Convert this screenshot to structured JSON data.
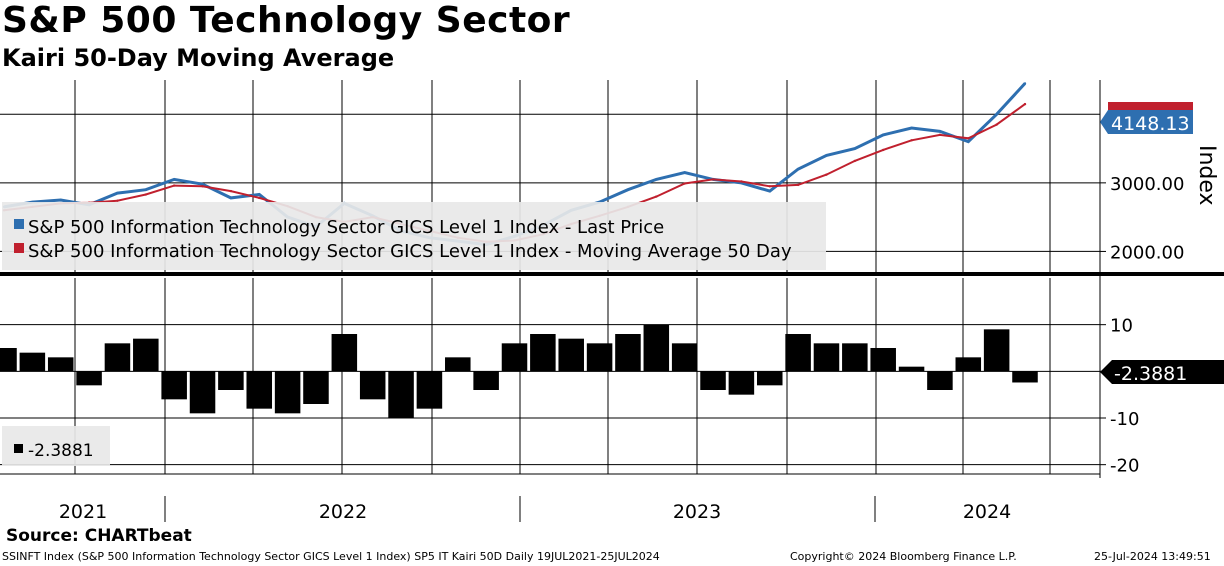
{
  "title": "S&P 500 Technology Sector",
  "subtitle": "Kairi 50-Day Moving Average",
  "source": "Source: CHARTbeat",
  "footer": {
    "left": "SSINFT Index (S&P 500 Information Technology Sector GICS Level 1 Index) SP5 IT Kairi 50D  Daily 19JUL2021-25JUL2024",
    "center": "Copyright© 2024 Bloomberg Finance L.P.",
    "right": "25-Jul-2024 13:49:51"
  },
  "colors": {
    "price": "#2e6fb0",
    "ma": "#c0202e",
    "kairi": "#000000",
    "grid": "#000000"
  },
  "chart_data": [
    {
      "type": "line",
      "ylabel": "Index",
      "ylim": [
        1700,
        4500
      ],
      "y_ticks": [
        "3000.00",
        "2000.00"
      ],
      "y_tick_values": [
        3000,
        2000
      ],
      "last_value_label": "4148.13",
      "legend_placement": "bottom-left",
      "x_ticks": [
        "2021",
        "2022",
        "2023",
        "2024"
      ],
      "x": [
        "2021-07",
        "2021-08",
        "2021-09",
        "2021-10",
        "2021-11",
        "2021-12",
        "2022-01",
        "2022-02",
        "2022-03",
        "2022-04",
        "2022-05",
        "2022-06",
        "2022-07",
        "2022-08",
        "2022-09",
        "2022-10",
        "2022-11",
        "2022-12",
        "2023-01",
        "2023-02",
        "2023-03",
        "2023-04",
        "2023-05",
        "2023-06",
        "2023-07",
        "2023-08",
        "2023-09",
        "2023-10",
        "2023-11",
        "2023-12",
        "2024-01",
        "2024-02",
        "2024-03",
        "2024-04",
        "2024-05",
        "2024-06",
        "2024-07"
      ],
      "series": [
        {
          "name": "S&P 500 Information Technology Sector GICS Level 1 Index - Last Price",
          "values": [
            2650,
            2720,
            2750,
            2680,
            2850,
            2900,
            3050,
            2980,
            2780,
            2830,
            2500,
            2360,
            2700,
            2520,
            2300,
            2200,
            2150,
            2100,
            2220,
            2380,
            2600,
            2720,
            2900,
            3050,
            3150,
            3050,
            3000,
            2880,
            3200,
            3400,
            3500,
            3700,
            3800,
            3750,
            3600,
            4000,
            4450
          ]
        },
        {
          "name": "S&P 500 Information Technology Sector GICS Level 1 Index - Moving Average 50 Day",
          "values": [
            2600,
            2650,
            2700,
            2710,
            2740,
            2830,
            2960,
            2950,
            2880,
            2780,
            2660,
            2500,
            2430,
            2500,
            2400,
            2300,
            2200,
            2140,
            2160,
            2250,
            2400,
            2520,
            2650,
            2800,
            2990,
            3050,
            3020,
            2950,
            2970,
            3120,
            3320,
            3480,
            3620,
            3700,
            3650,
            3850,
            4148.13
          ]
        }
      ]
    },
    {
      "type": "bar",
      "ylim": [
        -22,
        20
      ],
      "y_ticks": [
        "10",
        "0",
        "-10",
        "-20"
      ],
      "y_tick_values": [
        10,
        0,
        -10,
        -20
      ],
      "last_value_label": "-2.3881",
      "legend": "-2.3881",
      "x": [
        "2021-07",
        "2021-08",
        "2021-09",
        "2021-10",
        "2021-11",
        "2021-12",
        "2022-01",
        "2022-02",
        "2022-03",
        "2022-04",
        "2022-05",
        "2022-06",
        "2022-07",
        "2022-08",
        "2022-09",
        "2022-10",
        "2022-11",
        "2022-12",
        "2023-01",
        "2023-02",
        "2023-03",
        "2023-04",
        "2023-05",
        "2023-06",
        "2023-07",
        "2023-08",
        "2023-09",
        "2023-10",
        "2023-11",
        "2023-12",
        "2024-01",
        "2024-02",
        "2024-03",
        "2024-04",
        "2024-05",
        "2024-06",
        "2024-07"
      ],
      "values": [
        5,
        4,
        3,
        -3,
        6,
        7,
        -6,
        -9,
        -4,
        -8,
        -9,
        -7,
        8,
        -6,
        -10,
        -8,
        3,
        -4,
        6,
        8,
        7,
        6,
        8,
        10,
        6,
        -4,
        -5,
        -3,
        8,
        6,
        6,
        5,
        1,
        -4,
        3,
        9,
        -2.3881
      ]
    }
  ]
}
